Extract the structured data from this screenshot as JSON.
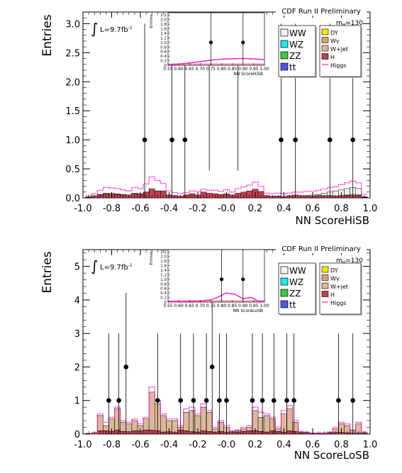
{
  "chart_data": [
    {
      "type": "bar",
      "panel": "hisb",
      "title": "CDF Run II Preliminary",
      "xlabel": "NN ScoreHiSB",
      "ylabel": "Entries",
      "luminosity": "L=9.7fb",
      "lumi_exp": "-1",
      "integral_symbol": "∫",
      "mass_label": "m",
      "mass_sub": "H",
      "mass_value": "=130",
      "xlim": [
        -1.0,
        1.0
      ],
      "ylim": [
        0,
        3.2
      ],
      "xticks": [
        "-1.0",
        "-0.8",
        "-0.6",
        "-0.4",
        "-0.2",
        "-0.0",
        "0.2",
        "0.4",
        "0.6",
        "0.8",
        "1.0"
      ],
      "yticks": [
        "0.0",
        "0.5",
        "1.0",
        "1.5",
        "2.0",
        "2.5",
        "3.0"
      ],
      "legend": {
        "position": "top-right",
        "left": [
          "WW",
          "WZ",
          "ZZ",
          "tt"
        ],
        "right": [
          "DY",
          "Wγ",
          "W+jet",
          "H",
          "Higgs"
        ]
      },
      "bins_x": [
        -0.96,
        -0.92,
        -0.88,
        -0.84,
        -0.8,
        -0.76,
        -0.72,
        -0.68,
        -0.64,
        -0.6,
        -0.56,
        -0.52,
        -0.48,
        -0.44,
        -0.4,
        -0.36,
        -0.32,
        -0.28,
        -0.24,
        -0.2,
        -0.16,
        -0.12,
        -0.08,
        -0.04,
        0.0,
        0.04,
        0.08,
        0.12,
        0.16,
        0.2,
        0.24,
        0.28,
        0.32,
        0.36,
        0.4,
        0.44,
        0.48,
        0.52,
        0.56,
        0.6,
        0.64,
        0.68,
        0.72,
        0.76,
        0.8,
        0.84,
        0.88,
        0.92,
        0.96
      ],
      "series": [
        {
          "name": "WW",
          "values": [
            0.005,
            0.005,
            0.005,
            0.005,
            0.005,
            0.005,
            0.005,
            0.005,
            0.005,
            0.005,
            0.005,
            0.005,
            0.005,
            0.005,
            0.005,
            0.005,
            0.005,
            0.005,
            0.005,
            0.005,
            0.005,
            0.005,
            0.005,
            0.005,
            0.005,
            0.005,
            0.005,
            0.005,
            0.005,
            0.005,
            0.005,
            0.005,
            0.005,
            0.005,
            0.01,
            0.01,
            0.02,
            0.03,
            0.04,
            0.05,
            0.06,
            0.08,
            0.1,
            0.12,
            0.14,
            0.16,
            0.18,
            0.16,
            0.02
          ]
        },
        {
          "name": "W+jet",
          "values": [
            0.02,
            0.04,
            0.06,
            0.08,
            0.08,
            0.07,
            0.06,
            0.05,
            0.08,
            0.06,
            0.1,
            0.16,
            0.12,
            0.08,
            0.04,
            0.03,
            0.02,
            0.02,
            0.03,
            0.04,
            0.03,
            0.03,
            0.04,
            0.03,
            0.04,
            0.03,
            0.05,
            0.06,
            0.07,
            0.08,
            0.06,
            0.02,
            0.02,
            0.03,
            0.02,
            0.02,
            0.02,
            0.02,
            0.02,
            0.02,
            0.02,
            0.02,
            0.03,
            0.03,
            0.04,
            0.05,
            0.06,
            0.05,
            0.02
          ]
        },
        {
          "name": "H",
          "values": [
            0.01,
            0.02,
            0.05,
            0.07,
            0.06,
            0.06,
            0.05,
            0.05,
            0.07,
            0.07,
            0.1,
            0.14,
            0.12,
            0.12,
            0.05,
            0.04,
            0.03,
            0.05,
            0.07,
            0.05,
            0.1,
            0.08,
            0.07,
            0.06,
            0.07,
            0.05,
            0.08,
            0.1,
            0.12,
            0.15,
            0.11,
            0.04,
            0.03,
            0.03,
            0.02,
            0.04,
            0.05,
            0.04,
            0.04,
            0.03,
            0.04,
            0.04,
            0.04,
            0.03,
            0.04,
            0.04,
            0.04,
            0.04,
            0.01
          ]
        },
        {
          "name": "Higgs",
          "values": [
            0.04,
            0.07,
            0.13,
            0.18,
            0.17,
            0.16,
            0.14,
            0.12,
            0.18,
            0.16,
            0.24,
            0.36,
            0.3,
            0.25,
            0.12,
            0.09,
            0.07,
            0.09,
            0.12,
            0.11,
            0.15,
            0.13,
            0.13,
            0.11,
            0.14,
            0.1,
            0.16,
            0.19,
            0.22,
            0.27,
            0.2,
            0.08,
            0.07,
            0.08,
            0.07,
            0.08,
            0.1,
            0.1,
            0.11,
            0.11,
            0.13,
            0.15,
            0.18,
            0.19,
            0.23,
            0.26,
            0.29,
            0.26,
            0.06
          ]
        }
      ],
      "data_points": {
        "x": [
          -0.57,
          -0.38,
          -0.29,
          -0.12,
          0.08,
          0.38,
          0.48,
          0.72,
          0.88
        ],
        "y": [
          1,
          1,
          1,
          3,
          3,
          1,
          1,
          1,
          1
        ]
      },
      "inset": {
        "xlabel": "NN ScoreHiSB",
        "ylabel": "Entries",
        "xlim": [
          0.55,
          1.0
        ],
        "ylim": [
          0,
          2.3
        ],
        "xticks": [
          "0.55",
          "0.60",
          "0.65",
          "0.70",
          "0.75",
          "0.80",
          "0.85",
          "0.90",
          "0.95",
          "1.00"
        ],
        "yticks": [
          "0",
          "0.2",
          "0.4",
          "0.6",
          "0.8",
          "1.0",
          "1.2",
          "1.4",
          "1.6",
          "1.8",
          "2.0",
          "2.2"
        ],
        "signal_x": [
          0.55,
          0.6,
          0.65,
          0.7,
          0.75,
          0.8,
          0.85,
          0.9,
          0.95,
          1.0
        ],
        "signal_y": [
          0.02,
          0.05,
          0.1,
          0.16,
          0.22,
          0.27,
          0.28,
          0.3,
          0.28,
          0.25
        ],
        "points_x": [
          0.75,
          0.9
        ],
        "points_y": [
          1,
          1
        ]
      }
    },
    {
      "type": "bar",
      "panel": "losb",
      "title": "CDF Run II Preliminary",
      "xlabel": "NN ScoreLoSB",
      "ylabel": "Entries",
      "luminosity": "L=9.7fb",
      "lumi_exp": "-1",
      "integral_symbol": "∫",
      "mass_label": "m",
      "mass_sub": "H",
      "mass_value": "=130",
      "xlim": [
        -1.0,
        1.0
      ],
      "ylim": [
        0,
        5.5
      ],
      "xticks": [
        "-1.0",
        "-0.8",
        "-0.6",
        "-0.4",
        "-0.2",
        "-0.0",
        "0.2",
        "0.4",
        "0.6",
        "0.8",
        "1.0"
      ],
      "yticks": [
        "0",
        "1",
        "2",
        "3",
        "4",
        "5"
      ],
      "legend": {
        "position": "top-right",
        "left": [
          "WW",
          "WZ",
          "ZZ",
          "tt"
        ],
        "right": [
          "DY",
          "Wγ",
          "W+jet",
          "H",
          "Higgs"
        ]
      },
      "bins_x": [
        -0.96,
        -0.92,
        -0.88,
        -0.84,
        -0.8,
        -0.76,
        -0.72,
        -0.68,
        -0.64,
        -0.6,
        -0.56,
        -0.52,
        -0.48,
        -0.44,
        -0.4,
        -0.36,
        -0.32,
        -0.28,
        -0.24,
        -0.2,
        -0.16,
        -0.12,
        -0.08,
        -0.04,
        0.0,
        0.04,
        0.08,
        0.12,
        0.16,
        0.2,
        0.24,
        0.28,
        0.32,
        0.36,
        0.4,
        0.44,
        0.48,
        0.52,
        0.56,
        0.6,
        0.64,
        0.68,
        0.72,
        0.76,
        0.8,
        0.84,
        0.88,
        0.92,
        0.96
      ],
      "series": [
        {
          "name": "H",
          "values": [
            0.02,
            0.04,
            0.1,
            0.1,
            0.08,
            0.12,
            0.08,
            0.07,
            0.1,
            0.09,
            0.12,
            0.12,
            0.1,
            0.06,
            0.07,
            0.05,
            0.12,
            0.1,
            0.07,
            0.06,
            0.1,
            0.08,
            0.06,
            0.08,
            0.05,
            0.07,
            0.06,
            0.08,
            0.1,
            0.1,
            0.08,
            0.06,
            0.1,
            0.08,
            0.06,
            0.1,
            0.08,
            0.04,
            0.03,
            0.02,
            0.02,
            0.02,
            0.03,
            0.05,
            0.05,
            0.04,
            0.03,
            0.03,
            0.02
          ]
        },
        {
          "name": "W+jet",
          "values": [
            0.0,
            0.0,
            0.55,
            0.25,
            0.45,
            0.75,
            0.35,
            0.3,
            0.4,
            0.25,
            0.45,
            1.25,
            0.9,
            0.55,
            0.4,
            0.4,
            0.2,
            0.65,
            0.7,
            0.55,
            0.8,
            0.65,
            0.15,
            0.35,
            0.2,
            0.05,
            0.1,
            0.15,
            0.2,
            0.7,
            0.5,
            0.55,
            0.45,
            0.15,
            0.6,
            0.75,
            0.35,
            0.05,
            0.05,
            0.02,
            0.02,
            0.02,
            0.05,
            0.15,
            0.3,
            0.25,
            0.1,
            0.3,
            0.05
          ]
        },
        {
          "name": "Higgs",
          "values": [
            0.0,
            0.0,
            0.6,
            0.35,
            0.5,
            0.8,
            0.4,
            0.35,
            0.45,
            0.3,
            0.5,
            1.4,
            1.0,
            0.6,
            0.45,
            0.45,
            0.25,
            0.75,
            0.8,
            0.6,
            0.9,
            0.7,
            0.2,
            0.4,
            0.25,
            0.1,
            0.12,
            0.2,
            0.25,
            0.8,
            0.65,
            0.6,
            0.5,
            0.2,
            0.7,
            0.85,
            0.4,
            0.08,
            0.06,
            0.03,
            0.03,
            0.03,
            0.06,
            0.2,
            0.35,
            0.3,
            0.12,
            0.35,
            0.06
          ]
        }
      ],
      "data_points": {
        "x": [
          -0.82,
          -0.75,
          -0.7,
          -0.48,
          -0.32,
          -0.23,
          -0.14,
          -0.1,
          -0.05,
          0.0,
          0.18,
          0.25,
          0.33,
          0.42,
          0.47,
          0.78,
          0.88
        ],
        "y": [
          1,
          1,
          2,
          1,
          1,
          1,
          1,
          2,
          1,
          1,
          1,
          1,
          1,
          1,
          1,
          1,
          1
        ]
      },
      "inset": {
        "xlabel": "NN ScoreLoSB",
        "ylabel": "Entries",
        "xlim": [
          0.55,
          1.0
        ],
        "ylim": [
          0,
          2.3
        ],
        "xticks": [
          "0.55",
          "0.60",
          "0.65",
          "0.70",
          "0.75",
          "0.80",
          "0.85",
          "0.90",
          "0.95",
          "1.00"
        ],
        "yticks": [
          "0",
          "0.2",
          "0.4",
          "0.6",
          "0.8",
          "1.0",
          "1.2",
          "1.4",
          "1.6",
          "1.8",
          "2.0",
          "2.2"
        ],
        "signal_x": [
          0.55,
          0.6,
          0.65,
          0.7,
          0.75,
          0.78,
          0.82,
          0.86,
          0.9,
          0.94,
          0.97,
          1.0
        ],
        "signal_y": [
          0.02,
          0.02,
          0.03,
          0.05,
          0.1,
          0.2,
          0.4,
          0.35,
          0.15,
          0.2,
          0.05,
          0.02
        ],
        "points_x": [
          0.8,
          0.9
        ],
        "points_y": [
          1,
          1
        ]
      }
    }
  ],
  "colors": {
    "WW": "#f2f2f2",
    "WZ": "#22e6ee",
    "ZZ": "#44c444",
    "tt": "#5555dd",
    "DY": "#f2e600",
    "Wgamma": "#d8a080",
    "Wjet": "#dcb89a",
    "H": "#c04050",
    "Higgs": "#ff22cc"
  }
}
